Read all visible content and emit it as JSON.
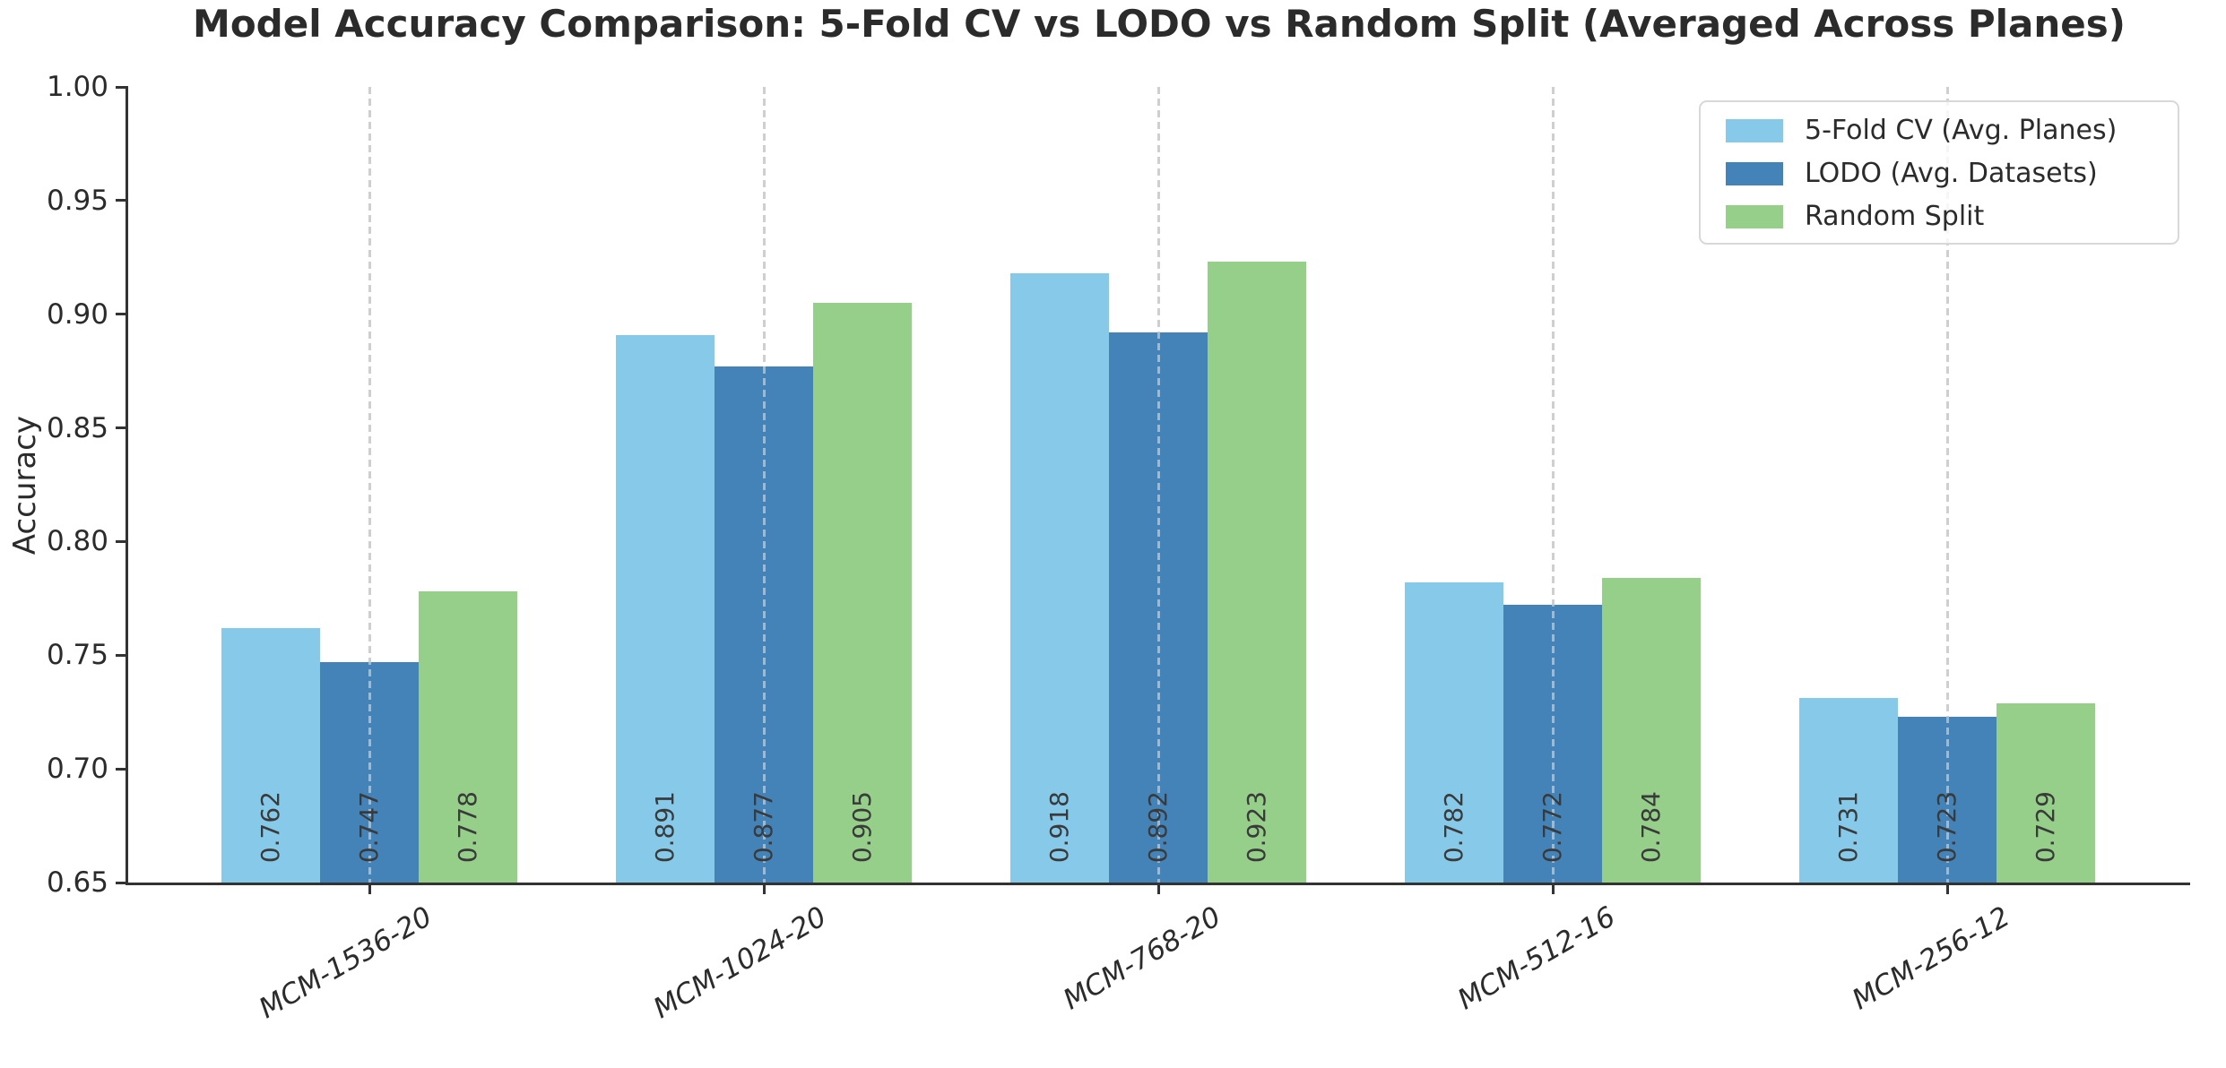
{
  "title": "Model Accuracy Comparison: 5-Fold CV vs LODO vs Random Split (Averaged Across Planes)",
  "chart_data": {
    "type": "bar",
    "title": "Model Accuracy Comparison: 5-Fold CV vs LODO vs Random Split (Averaged Across Planes)",
    "xlabel": "",
    "ylabel": "Accuracy",
    "ylim": [
      0.65,
      1.0
    ],
    "yticks": [
      0.65,
      0.7,
      0.75,
      0.8,
      0.85,
      0.9,
      0.95,
      1.0
    ],
    "categories": [
      "MCM-1536-20",
      "MCM-1024-20",
      "MCM-768-20",
      "MCM-512-16",
      "MCM-256-12"
    ],
    "series": [
      {
        "name": "5-Fold CV (Avg. Planes)",
        "color": "#87C9E8",
        "values": [
          0.762,
          0.891,
          0.918,
          0.782,
          0.731
        ]
      },
      {
        "name": "LODO (Avg. Datasets)",
        "color": "#4483B8",
        "values": [
          0.747,
          0.877,
          0.892,
          0.772,
          0.723
        ]
      },
      {
        "name": "Random Split",
        "color": "#95CF8A",
        "values": [
          0.778,
          0.905,
          0.923,
          0.784,
          0.729
        ]
      }
    ],
    "value_labels_decimals": 3,
    "grid": "vertical-dashed-at-group-centers",
    "legend_position": "upper right",
    "colors": {
      "axis": "#333333",
      "text": "#2b2b2b",
      "value_label": "#3a3a3a",
      "gridline": "#c3c3c3",
      "legend_border": "#d8d8d8"
    }
  }
}
